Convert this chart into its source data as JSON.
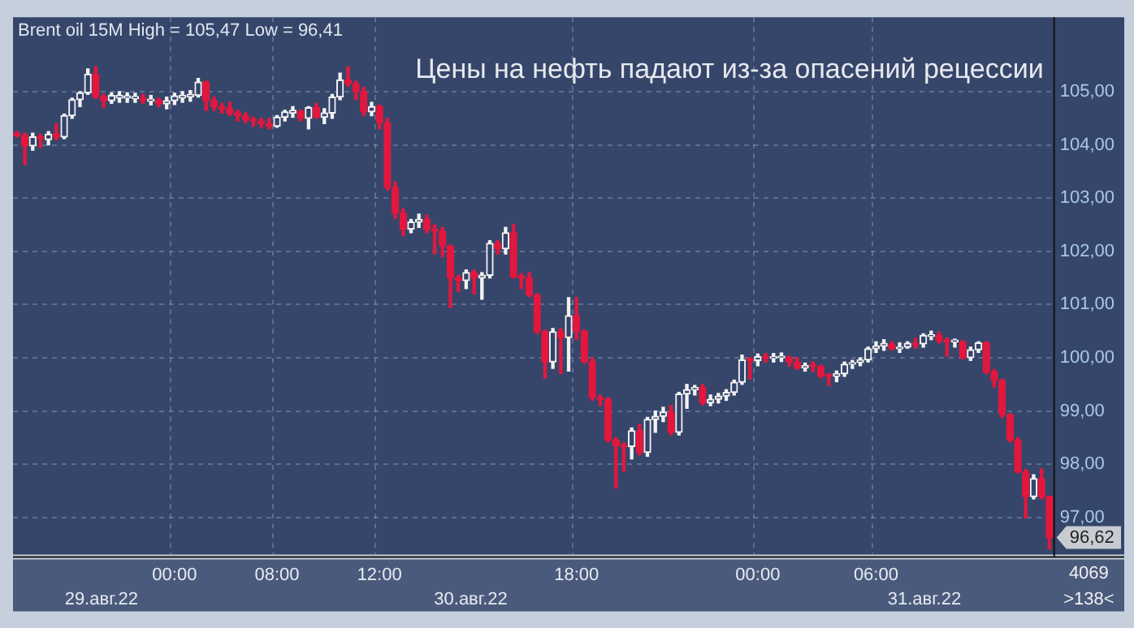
{
  "chart_data": {
    "type": "candlestick",
    "title": "Цены на нефть падают из-за опасений рецессии",
    "subtitle": "Brent oil 15M High = 105,47 Low = 96,41",
    "categories": [
      null,
      null,
      null,
      null,
      null,
      null,
      null,
      null,
      null,
      null,
      null,
      null,
      null,
      null,
      null,
      null,
      null,
      null,
      null,
      null,
      "00:00",
      null,
      null,
      null,
      null,
      null,
      null,
      null,
      null,
      null,
      null,
      null,
      null,
      "08:00",
      null,
      null,
      null,
      null,
      null,
      null,
      null,
      null,
      null,
      null,
      null,
      null,
      "12:00",
      null,
      null,
      null,
      null,
      null,
      null,
      null,
      null,
      null,
      null,
      null,
      null,
      null,
      null,
      null,
      null,
      null,
      null,
      null,
      null,
      null,
      null,
      null,
      null,
      "18:00",
      null,
      null,
      null,
      null,
      null,
      null,
      null,
      null,
      null,
      null,
      null,
      null,
      null,
      null,
      null,
      null,
      null,
      null,
      null,
      null,
      null,
      null,
      "00:00",
      null,
      null,
      null,
      null,
      null,
      null,
      null,
      null,
      null,
      null,
      null,
      null,
      null,
      null,
      "06:00",
      null,
      null,
      null,
      null,
      null,
      null,
      null,
      null,
      null,
      null,
      null,
      null,
      null,
      null,
      null,
      null,
      null,
      null,
      null,
      null,
      null,
      null
    ],
    "ohlc": [
      [
        104.22,
        104.25,
        104.15,
        104.18
      ],
      [
        104.18,
        104.22,
        103.63,
        103.98
      ],
      [
        103.98,
        104.22,
        103.9,
        104.15
      ],
      [
        104.15,
        104.2,
        103.95,
        104.12
      ],
      [
        104.1,
        104.25,
        104.0,
        104.2
      ],
      [
        104.2,
        104.4,
        104.1,
        104.15
      ],
      [
        104.15,
        104.58,
        104.12,
        104.55
      ],
      [
        104.55,
        104.88,
        104.5,
        104.85
      ],
      [
        104.85,
        105.0,
        104.72,
        104.98
      ],
      [
        104.98,
        105.43,
        104.95,
        105.33
      ],
      [
        105.33,
        105.47,
        104.88,
        104.9
      ],
      [
        104.9,
        104.95,
        104.7,
        104.83
      ],
      [
        104.83,
        104.98,
        104.78,
        104.93
      ],
      [
        104.88,
        105.0,
        104.8,
        104.93
      ],
      [
        104.88,
        104.98,
        104.8,
        104.92
      ],
      [
        104.87,
        104.97,
        104.8,
        104.91
      ],
      [
        104.88,
        104.95,
        104.78,
        104.84
      ],
      [
        104.82,
        104.93,
        104.75,
        104.86
      ],
      [
        104.84,
        104.88,
        104.72,
        104.77
      ],
      [
        104.77,
        104.9,
        104.68,
        104.83
      ],
      [
        104.83,
        104.97,
        104.76,
        104.92
      ],
      [
        104.88,
        105.0,
        104.8,
        104.93
      ],
      [
        104.9,
        105.02,
        104.82,
        104.95
      ],
      [
        104.93,
        105.25,
        104.9,
        105.18
      ],
      [
        105.18,
        105.2,
        104.65,
        104.83
      ],
      [
        104.83,
        104.9,
        104.65,
        104.72
      ],
      [
        104.72,
        104.78,
        104.6,
        104.68
      ],
      [
        104.68,
        104.8,
        104.55,
        104.6
      ],
      [
        104.6,
        104.65,
        104.45,
        104.55
      ],
      [
        104.55,
        104.6,
        104.42,
        104.47
      ],
      [
        104.47,
        104.52,
        104.35,
        104.45
      ],
      [
        104.45,
        104.5,
        104.33,
        104.4
      ],
      [
        104.4,
        104.5,
        104.3,
        104.35
      ],
      [
        104.35,
        104.55,
        104.33,
        104.52
      ],
      [
        104.52,
        104.65,
        104.45,
        104.62
      ],
      [
        104.6,
        104.72,
        104.52,
        104.65
      ],
      [
        104.63,
        104.66,
        104.45,
        104.5
      ],
      [
        104.5,
        104.72,
        104.3,
        104.7
      ],
      [
        104.7,
        104.78,
        104.5,
        104.52
      ],
      [
        104.52,
        104.68,
        104.4,
        104.6
      ],
      [
        104.6,
        104.95,
        104.5,
        104.9
      ],
      [
        104.9,
        105.35,
        104.85,
        105.22
      ],
      [
        105.22,
        105.47,
        105.1,
        105.15
      ],
      [
        105.15,
        105.2,
        104.85,
        105.0
      ],
      [
        105.0,
        105.08,
        104.55,
        104.62
      ],
      [
        104.62,
        104.8,
        104.55,
        104.72
      ],
      [
        104.72,
        104.75,
        104.3,
        104.42
      ],
      [
        104.42,
        104.5,
        103.15,
        103.2
      ],
      [
        103.2,
        103.3,
        102.62,
        102.72
      ],
      [
        102.72,
        102.8,
        102.3,
        102.42
      ],
      [
        102.42,
        102.6,
        102.35,
        102.55
      ],
      [
        102.55,
        102.7,
        102.45,
        102.6
      ],
      [
        102.6,
        102.68,
        102.35,
        102.42
      ],
      [
        102.42,
        102.5,
        101.95,
        102.38
      ],
      [
        102.38,
        102.45,
        101.9,
        102.1
      ],
      [
        102.1,
        102.12,
        100.94,
        101.5
      ],
      [
        101.5,
        101.55,
        101.25,
        101.45
      ],
      [
        101.45,
        101.65,
        101.3,
        101.6
      ],
      [
        101.6,
        101.65,
        101.2,
        101.5
      ],
      [
        101.5,
        101.6,
        101.1,
        101.55
      ],
      [
        101.55,
        102.2,
        101.5,
        102.15
      ],
      [
        102.15,
        102.2,
        101.95,
        102.05
      ],
      [
        102.05,
        102.45,
        101.95,
        102.35
      ],
      [
        102.35,
        102.5,
        101.5,
        101.52
      ],
      [
        101.52,
        101.58,
        101.3,
        101.5
      ],
      [
        101.5,
        101.6,
        101.15,
        101.18
      ],
      [
        101.18,
        101.2,
        100.45,
        100.49
      ],
      [
        100.49,
        100.52,
        99.62,
        99.92
      ],
      [
        99.92,
        100.55,
        99.8,
        100.49
      ],
      [
        100.49,
        100.55,
        99.7,
        100.38
      ],
      [
        100.38,
        101.13,
        99.75,
        100.79
      ],
      [
        100.79,
        101.13,
        100.35,
        100.5
      ],
      [
        100.5,
        100.52,
        99.9,
        99.93
      ],
      [
        99.93,
        100.0,
        99.2,
        99.25
      ],
      [
        99.25,
        99.3,
        99.1,
        99.22
      ],
      [
        99.22,
        99.25,
        98.42,
        98.45
      ],
      [
        98.45,
        98.5,
        97.55,
        98.35
      ],
      [
        98.35,
        98.4,
        97.87,
        98.33
      ],
      [
        98.33,
        98.68,
        98.1,
        98.63
      ],
      [
        98.63,
        98.75,
        98.17,
        98.22
      ],
      [
        98.22,
        98.88,
        98.15,
        98.84
      ],
      [
        98.84,
        99.0,
        98.6,
        98.9
      ],
      [
        98.9,
        99.07,
        98.8,
        98.98
      ],
      [
        98.98,
        99.1,
        98.55,
        98.6
      ],
      [
        98.6,
        99.35,
        98.55,
        99.32
      ],
      [
        99.32,
        99.5,
        99.05,
        99.4
      ],
      [
        99.4,
        99.48,
        99.3,
        99.44
      ],
      [
        99.44,
        99.5,
        99.12,
        99.15
      ],
      [
        99.15,
        99.3,
        99.1,
        99.22
      ],
      [
        99.22,
        99.33,
        99.15,
        99.28
      ],
      [
        99.28,
        99.4,
        99.2,
        99.35
      ],
      [
        99.35,
        99.58,
        99.3,
        99.54
      ],
      [
        99.54,
        100.05,
        99.5,
        99.96
      ],
      [
        99.96,
        100.0,
        99.6,
        99.95
      ],
      [
        99.95,
        100.07,
        99.85,
        100.02
      ],
      [
        100.02,
        100.08,
        99.92,
        99.99
      ],
      [
        99.99,
        100.08,
        99.92,
        100.0
      ],
      [
        100.0,
        100.09,
        99.93,
        100.01
      ],
      [
        100.01,
        100.03,
        99.84,
        99.92
      ],
      [
        99.92,
        100.0,
        99.78,
        99.81
      ],
      [
        99.81,
        99.9,
        99.75,
        99.85
      ],
      [
        99.85,
        99.92,
        99.74,
        99.84
      ],
      [
        99.84,
        99.86,
        99.62,
        99.66
      ],
      [
        99.66,
        99.7,
        99.48,
        99.65
      ],
      [
        99.65,
        99.75,
        99.55,
        99.7
      ],
      [
        99.7,
        99.92,
        99.65,
        99.88
      ],
      [
        99.88,
        99.95,
        99.8,
        99.91
      ],
      [
        99.91,
        100.0,
        99.85,
        99.96
      ],
      [
        99.96,
        100.2,
        99.92,
        100.17
      ],
      [
        100.17,
        100.3,
        100.1,
        100.22
      ],
      [
        100.22,
        100.34,
        100.14,
        100.27
      ],
      [
        100.25,
        100.3,
        100.15,
        100.17
      ],
      [
        100.17,
        100.28,
        100.1,
        100.2
      ],
      [
        100.2,
        100.3,
        100.18,
        100.27
      ],
      [
        100.27,
        100.36,
        100.18,
        100.24
      ],
      [
        100.26,
        100.45,
        100.2,
        100.42
      ],
      [
        100.4,
        100.5,
        100.34,
        100.43
      ],
      [
        100.42,
        100.48,
        100.28,
        100.32
      ],
      [
        100.32,
        100.37,
        100.03,
        100.3
      ],
      [
        100.3,
        100.35,
        100.2,
        100.3
      ],
      [
        100.3,
        100.32,
        99.98,
        100.0
      ],
      [
        100.0,
        100.2,
        99.95,
        100.15
      ],
      [
        100.15,
        100.3,
        100.1,
        100.28
      ],
      [
        100.28,
        100.3,
        99.7,
        99.73
      ],
      [
        99.73,
        99.78,
        99.45,
        99.57
      ],
      [
        99.57,
        99.6,
        98.88,
        98.93
      ],
      [
        98.93,
        98.95,
        98.42,
        98.45
      ],
      [
        98.45,
        98.5,
        97.84,
        97.86
      ],
      [
        97.86,
        97.9,
        96.99,
        97.39
      ],
      [
        97.39,
        97.8,
        97.35,
        97.73
      ],
      [
        97.73,
        97.91,
        97.35,
        97.39
      ],
      [
        97.39,
        97.4,
        96.41,
        96.62
      ]
    ],
    "colors": [
      "#e3173e",
      "#e3173e",
      "#f2f2f2",
      "#e3173e",
      "#f2f2f2",
      "#e3173e",
      "#f2f2f2",
      "#f2f2f2",
      "#f2f2f2",
      "#f2f2f2",
      "#e3173e",
      "#e3173e",
      "#f2f2f2",
      "#f2f2f2",
      "#f2f2f2",
      "#f2f2f2",
      "#e3173e",
      "#f2f2f2",
      "#e3173e",
      "#f2f2f2",
      "#f2f2f2",
      "#f2f2f2",
      "#f2f2f2",
      "#f2f2f2",
      "#e3173e",
      "#e3173e",
      "#e3173e",
      "#e3173e",
      "#e3173e",
      "#e3173e",
      "#e3173e",
      "#e3173e",
      "#e3173e",
      "#f2f2f2",
      "#f2f2f2",
      "#f2f2f2",
      "#e3173e",
      "#f2f2f2",
      "#e3173e",
      "#f2f2f2",
      "#f2f2f2",
      "#f2f2f2",
      "#e3173e",
      "#e3173e",
      "#e3173e",
      "#f2f2f2",
      "#e3173e",
      "#e3173e",
      "#e3173e",
      "#e3173e",
      "#f2f2f2",
      "#f2f2f2",
      "#e3173e",
      "#e3173e",
      "#e3173e",
      "#e3173e",
      "#e3173e",
      "#f2f2f2",
      "#e3173e",
      "#f2f2f2",
      "#f2f2f2",
      "#e3173e",
      "#f2f2f2",
      "#e3173e",
      "#e3173e",
      "#e3173e",
      "#e3173e",
      "#e3173e",
      "#f2f2f2",
      "#e3173e",
      "#f2f2f2",
      "#e3173e",
      "#e3173e",
      "#e3173e",
      "#e3173e",
      "#e3173e",
      "#e3173e",
      "#e3173e",
      "#f2f2f2",
      "#e3173e",
      "#f2f2f2",
      "#f2f2f2",
      "#f2f2f2",
      "#e3173e",
      "#f2f2f2",
      "#f2f2f2",
      "#f2f2f2",
      "#e3173e",
      "#f2f2f2",
      "#f2f2f2",
      "#f2f2f2",
      "#f2f2f2",
      "#f2f2f2",
      "#e3173e",
      "#f2f2f2",
      "#e3173e",
      "#f2f2f2",
      "#f2f2f2",
      "#e3173e",
      "#e3173e",
      "#f2f2f2",
      "#e3173e",
      "#e3173e",
      "#e3173e",
      "#f2f2f2",
      "#f2f2f2",
      "#f2f2f2",
      "#f2f2f2",
      "#f2f2f2",
      "#f2f2f2",
      "#f2f2f2",
      "#e3173e",
      "#f2f2f2",
      "#f2f2f2",
      "#e3173e",
      "#f2f2f2",
      "#f2f2f2",
      "#e3173e",
      "#e3173e",
      "#f2f2f2",
      "#e3173e",
      "#f2f2f2",
      "#f2f2f2",
      "#e3173e",
      "#e3173e",
      "#e3173e",
      "#e3173e",
      "#e3173e",
      "#e3173e",
      "#f2f2f2",
      "#e3173e",
      "#e3173e"
    ],
    "ylim": [
      96.3,
      106.4
    ],
    "yticks": [
      {
        "value": 97,
        "label": "97,00"
      },
      {
        "value": 98,
        "label": "98,00"
      },
      {
        "value": 99,
        "label": "99,00"
      },
      {
        "value": 100,
        "label": "100,00"
      },
      {
        "value": 101,
        "label": "101,00"
      },
      {
        "value": 102,
        "label": "102,00"
      },
      {
        "value": 103,
        "label": "103,00"
      },
      {
        "value": 104,
        "label": "104,00"
      },
      {
        "value": 105,
        "label": "105,00"
      }
    ],
    "grid": true,
    "legend": false,
    "annotations": [
      "29.авг.22",
      "30.авг.22",
      "31.авг.22",
      "4069",
      ">138<",
      {
        "text": "96,62",
        "y": 96.62
      }
    ]
  }
}
